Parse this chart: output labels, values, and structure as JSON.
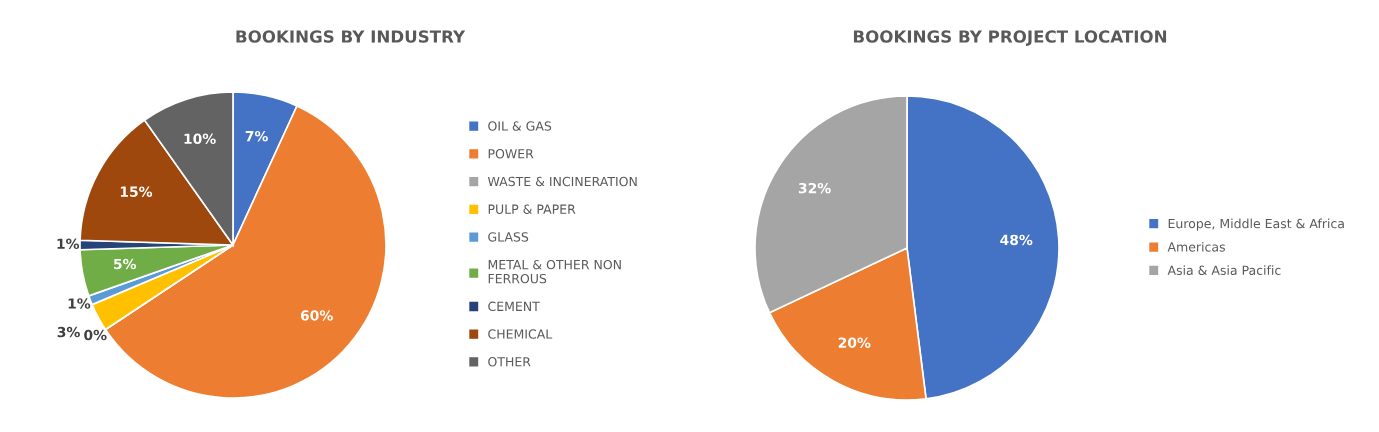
{
  "chart_data": [
    {
      "type": "pie",
      "title": "BOOKINGS BY INDUSTRY",
      "categories": [
        "OIL & GAS",
        "POWER",
        "WASTE & INCINERATION",
        "PULP & PAPER",
        "GLASS",
        "METAL & OTHER NON\nFERROUS",
        "CEMENT",
        "CHEMICAL",
        "OTHER"
      ],
      "values": [
        7,
        60,
        0,
        3,
        1,
        5,
        1,
        15,
        10
      ],
      "colors": [
        "#4472c4",
        "#ed7d31",
        "#a5a5a5",
        "#ffc000",
        "#5b9bd5",
        "#70ad47",
        "#264478",
        "#9e480e",
        "#636363"
      ],
      "value_labels": [
        "7%",
        "60%",
        "0%",
        "3%",
        "1%",
        "5%",
        "1%",
        "15%",
        "10%"
      ],
      "legend": "right"
    },
    {
      "type": "pie",
      "title": "BOOKINGS BY PROJECT LOCATION",
      "categories": [
        "Europe, Middle East & Africa",
        "Americas",
        "Asia & Asia Pacific"
      ],
      "values": [
        48,
        20,
        32
      ],
      "colors": [
        "#4472c4",
        "#ed7d31",
        "#a5a5a5"
      ],
      "value_labels": [
        "48%",
        "20%",
        "32%"
      ],
      "legend": "right"
    }
  ]
}
